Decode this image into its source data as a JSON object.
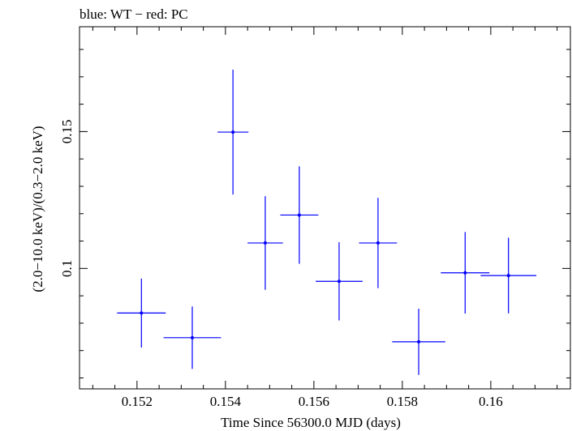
{
  "chart_data": {
    "type": "scatter",
    "title": "blue: WT − red: PC",
    "xlabel": "Time Since 56300.0 MJD (days)",
    "ylabel": "(2.0−10.0 keV)/(0.3−2.0 keV)",
    "xlim": [
      0.1507,
      0.1618
    ],
    "ylim": [
      0.056,
      0.1883
    ],
    "x_ticks": [
      0.152,
      0.154,
      0.156,
      0.158,
      0.16
    ],
    "x_tick_labels": [
      "0.152",
      "0.154",
      "0.156",
      "0.158",
      "0.16"
    ],
    "y_ticks": [
      0.1,
      0.15
    ],
    "y_tick_labels": [
      "0.1",
      "0.15"
    ],
    "grid": false,
    "series": [
      {
        "color": "#0000ff",
        "points": [
          {
            "x": 0.1521,
            "xerr": 0.00055,
            "y": 0.0837,
            "yerr": 0.0126
          },
          {
            "x": 0.15325,
            "xerr": 0.00065,
            "y": 0.0747,
            "yerr": 0.0114
          },
          {
            "x": 0.15417,
            "xerr": 0.00035,
            "y": 0.1498,
            "yerr": 0.0228
          },
          {
            "x": 0.1549,
            "xerr": 0.0004,
            "y": 0.1093,
            "yerr": 0.0171
          },
          {
            "x": 0.15567,
            "xerr": 0.00043,
            "y": 0.1195,
            "yerr": 0.0178
          },
          {
            "x": 0.15657,
            "xerr": 0.00053,
            "y": 0.0953,
            "yerr": 0.0143
          },
          {
            "x": 0.15745,
            "xerr": 0.00043,
            "y": 0.1093,
            "yerr": 0.0165
          },
          {
            "x": 0.15837,
            "xerr": 0.0006,
            "y": 0.0732,
            "yerr": 0.0121
          },
          {
            "x": 0.15942,
            "xerr": 0.00055,
            "y": 0.0984,
            "yerr": 0.0149
          },
          {
            "x": 0.1604,
            "xerr": 0.00063,
            "y": 0.0974,
            "yerr": 0.0138
          }
        ]
      }
    ]
  }
}
